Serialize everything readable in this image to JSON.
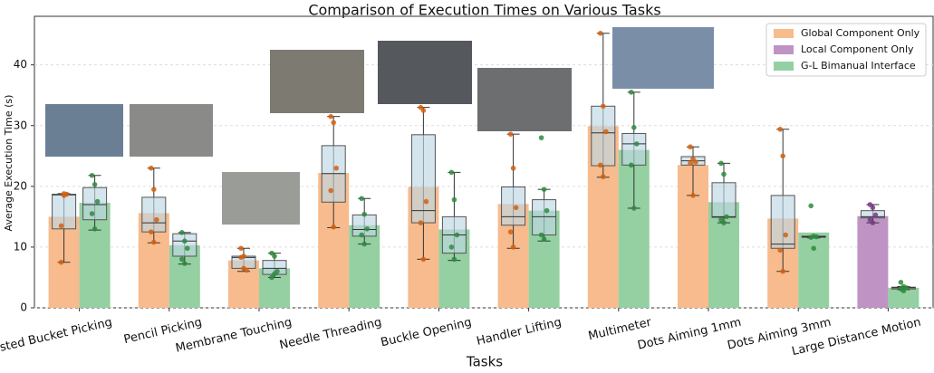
{
  "chart_data": {
    "type": "bar",
    "title": "Comparison of Execution Times on Various Tasks",
    "x_label": "Tasks",
    "y_label": "Average Execution Time (s)",
    "categories": [
      "Nested Bucket Picking",
      "Pencil Picking",
      "Membrane Touching",
      "Needle Threading",
      "Buckle Opening",
      "Handler Lifting",
      "Multimeter",
      "Dots Aiming 1mm",
      "Dots Aiming 3mm",
      "Large Distance Motion"
    ],
    "ylim": [
      0,
      48
    ],
    "yticks": [
      0,
      10,
      20,
      30,
      40
    ],
    "grid": true,
    "legend": "upper right",
    "series": [
      {
        "name": "Global Component Only",
        "color": "#f7bb8e",
        "point_color": "#d2600f",
        "values": [
          15,
          15.6,
          7.8,
          22.2,
          19.9,
          17.1,
          29.9,
          23.5,
          14.7,
          null
        ],
        "boxes": [
          {
            "whisker": [
              7.5,
              18.8
            ],
            "box": [
              13,
              18.7
            ],
            "median": 18.6,
            "points": [
              7.5,
              18.8,
              18.7,
              13.5,
              18.5
            ]
          },
          {
            "whisker": [
              10.7,
              23
            ],
            "box": [
              12.5,
              18.2
            ],
            "median": 14,
            "points": [
              23,
              19.5,
              14.5,
              12.5,
              10.8
            ]
          },
          {
            "whisker": [
              6,
              9.8
            ],
            "box": [
              6.5,
              8.5
            ],
            "median": 8.3,
            "points": [
              9.8,
              8.5,
              6.2,
              8.3,
              6.5
            ]
          },
          {
            "whisker": [
              13.2,
              31.5
            ],
            "box": [
              17.4,
              26.7
            ],
            "median": 22.1,
            "points": [
              31.5,
              30.5,
              23,
              19.3,
              13.3
            ]
          },
          {
            "whisker": [
              8,
              33
            ],
            "box": [
              14,
              28.5
            ],
            "median": 16,
            "points": [
              33,
              32.5,
              17.5,
              14,
              8
            ]
          },
          {
            "whisker": [
              9.8,
              28.6
            ],
            "box": [
              13.6,
              19.9
            ],
            "median": 15,
            "points": [
              28.6,
              23,
              16.5,
              12.5,
              10
            ]
          },
          {
            "whisker": [
              21.5,
              45.2
            ],
            "box": [
              23.4,
              33.2
            ],
            "median": 28.8,
            "points": [
              45.2,
              33.2,
              29,
              23.5,
              21.6
            ]
          },
          {
            "whisker": [
              18.5,
              26.5
            ],
            "box": [
              23.5,
              24.9
            ],
            "median": 24.2,
            "points": [
              26.5,
              24.5,
              24,
              23.8,
              18.5
            ]
          },
          {
            "whisker": [
              6,
              29.4
            ],
            "box": [
              9.8,
              18.5
            ],
            "median": 10.5,
            "points": [
              29.4,
              25,
              12,
              9.5,
              6
            ]
          },
          null
        ]
      },
      {
        "name": "Local Component Only",
        "color": "#bf94c4",
        "point_color": "#7a3a8a",
        "values": [
          null,
          null,
          null,
          null,
          null,
          null,
          null,
          null,
          null,
          15.1
        ],
        "boxes": [
          null,
          null,
          null,
          null,
          null,
          null,
          null,
          null,
          null,
          {
            "whisker": [
              14,
              17
            ],
            "box": [
              14.8,
              16
            ],
            "median": 15,
            "points": [
              17,
              16.5,
              15.3,
              14.5,
              14
            ]
          }
        ]
      },
      {
        "name": "G-L Bimanual Interface",
        "color": "#94d0a2",
        "point_color": "#2e8b3e",
        "values": [
          17.3,
          10.3,
          6.5,
          13.6,
          12.9,
          16,
          26,
          17.4,
          12.4,
          3.3
        ],
        "boxes": [
          {
            "whisker": [
              12.8,
              21.8
            ],
            "box": [
              14.5,
              19.8
            ],
            "median": 17,
            "points": [
              21.8,
              20.3,
              17.5,
              15.5,
              13
            ]
          },
          {
            "whisker": [
              7.2,
              12.4
            ],
            "box": [
              8.5,
              12.2
            ],
            "median": 11,
            "points": [
              12.4,
              11,
              9.8,
              8,
              7.3
            ]
          },
          {
            "whisker": [
              5,
              9
            ],
            "box": [
              5.5,
              7.8
            ],
            "median": 6.5,
            "points": [
              9,
              8.5,
              6,
              5,
              5.6
            ]
          },
          {
            "whisker": [
              10.5,
              18
            ],
            "box": [
              11.8,
              15.3
            ],
            "median": 12.9,
            "points": [
              18,
              15.4,
              13,
              12,
              10.5
            ]
          },
          {
            "whisker": [
              7.8,
              22.3
            ],
            "box": [
              9,
              15
            ],
            "median": 12,
            "points": [
              22.3,
              17.8,
              12,
              10,
              8
            ]
          },
          {
            "whisker": [
              11,
              19.5
            ],
            "box": [
              12,
              17.8
            ],
            "median": 15,
            "points": [
              28,
              19.5,
              16,
              12,
              11.3
            ]
          },
          {
            "whisker": [
              16.4,
              35.5
            ],
            "box": [
              23.5,
              28.7
            ],
            "median": 27,
            "points": [
              35.5,
              29.7,
              27,
              23.5,
              16.4
            ]
          },
          {
            "whisker": [
              14,
              23.8
            ],
            "box": [
              14.9,
              20.6
            ],
            "median": 15,
            "points": [
              23.8,
              22,
              15,
              14.5,
              14
            ]
          },
          {
            "whisker": [
              11.5,
              11.8
            ],
            "box": [
              11.6,
              11.8
            ],
            "median": 11.7,
            "points": [
              16.8,
              11.8,
              11.7,
              11.6,
              9.8
            ]
          },
          {
            "whisker": [
              3,
              3.5
            ],
            "box": [
              3.1,
              3.4
            ],
            "median": 3.3,
            "points": [
              4.2,
              3.5,
              3.3,
              3.1,
              2.8
            ]
          }
        ]
      }
    ]
  }
}
